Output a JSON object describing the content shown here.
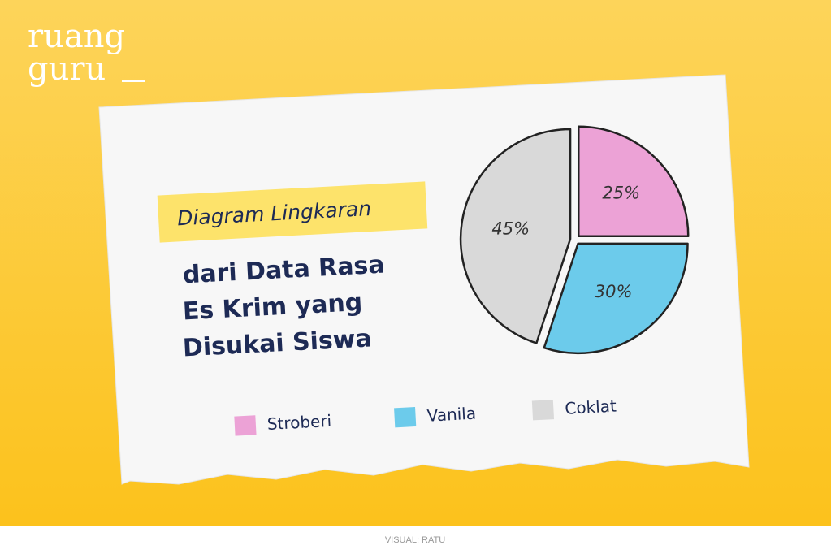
{
  "brand": [
    "ruang",
    "guru"
  ],
  "chart_data": {
    "type": "pie",
    "title": "Diagram Lingkaran",
    "subtitle": [
      "dari Data Rasa",
      "Es Krim yang",
      "Disukai Siswa"
    ],
    "categories": [
      "Stroberi",
      "Vanila",
      "Coklat"
    ],
    "values": [
      25,
      30,
      45
    ],
    "value_labels": [
      "25%",
      "30%",
      "45%"
    ],
    "colors": [
      "#eca2d6",
      "#6ccbeb",
      "#d9d9d9"
    ]
  },
  "credit": "VISUAL: RATU"
}
